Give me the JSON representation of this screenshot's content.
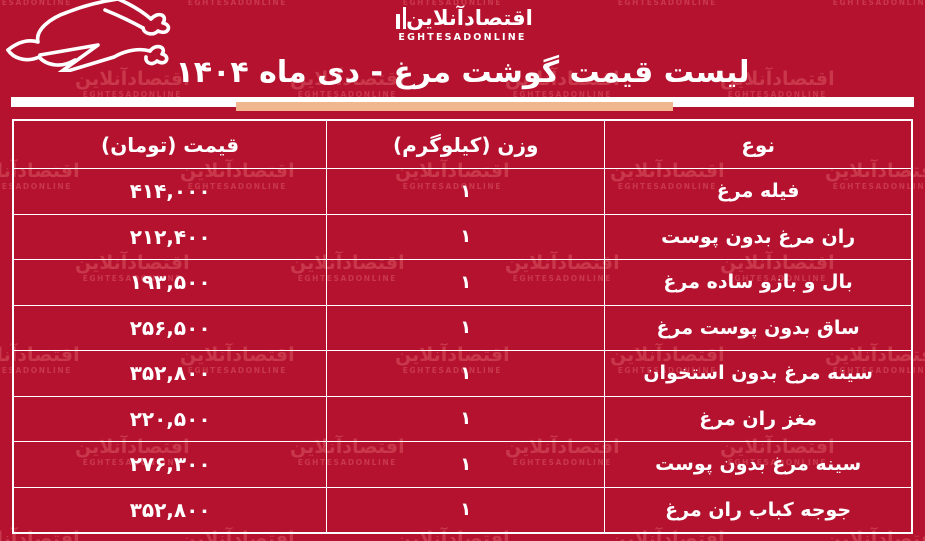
{
  "colors": {
    "background": "#b5122f",
    "table_border": "#ffffff",
    "text": "#ffffff",
    "divider_peach": "#f0b68e",
    "watermark_tint": "#ff9696"
  },
  "logo": {
    "fa": "اقتصادآنلاین",
    "en": "EGHTESADONLINE"
  },
  "header": {
    "title": "لیست قیمت گوشت مرغ - دی ماه ۱۴۰۴"
  },
  "icons": {
    "chicken": "chicken-line-art",
    "logo_bars": "double-bar-logo-mark"
  },
  "table": {
    "columns": [
      {
        "id": "type",
        "label": "نوع"
      },
      {
        "id": "weight",
        "label": "وزن (کیلوگرم)"
      },
      {
        "id": "price",
        "label": "قیمت (تومان)"
      }
    ],
    "rows": [
      {
        "type": "فیله مرغ",
        "weight": "۱",
        "price": "۴۱۴,۰۰۰"
      },
      {
        "type": "ران مرغ بدون پوست",
        "weight": "۱",
        "price": "۲۱۲,۴۰۰"
      },
      {
        "type": "بال و بازو ساده مرغ",
        "weight": "۱",
        "price": "۱۹۳,۵۰۰"
      },
      {
        "type": "ساق بدون پوست مرغ",
        "weight": "۱",
        "price": "۲۵۶,۵۰۰"
      },
      {
        "type": "سینه مرغ بدون استخوان",
        "weight": "۱",
        "price": "۳۵۲,۸۰۰"
      },
      {
        "type": "مغز ران مرغ",
        "weight": "۱",
        "price": "۲۲۰,۵۰۰"
      },
      {
        "type": "سینه مرغ بدون پوست",
        "weight": "۱",
        "price": "۲۷۶,۳۰۰"
      },
      {
        "type": "جوجه کباب ران مرغ",
        "weight": "۱",
        "price": "۳۵۲,۸۰۰"
      }
    ]
  },
  "chart_data": {
    "type": "table",
    "title": "لیست قیمت گوشت مرغ - دی ماه ۱۴۰۴",
    "columns": [
      "نوع",
      "وزن (کیلوگرم)",
      "قیمت (تومان)"
    ],
    "rows": [
      [
        "فیله مرغ",
        1,
        414000
      ],
      [
        "ران مرغ بدون پوست",
        1,
        212400
      ],
      [
        "بال و بازو ساده مرغ",
        1,
        193500
      ],
      [
        "ساق بدون پوست مرغ",
        1,
        256500
      ],
      [
        "سینه مرغ بدون استخوان",
        1,
        352800
      ],
      [
        "مغز ران مرغ",
        1,
        220500
      ],
      [
        "سینه مرغ بدون پوست",
        1,
        276300
      ],
      [
        "جوجه کباب ران مرغ",
        1,
        352800
      ]
    ],
    "units": {
      "weight": "کیلوگرم",
      "price": "تومان"
    }
  }
}
